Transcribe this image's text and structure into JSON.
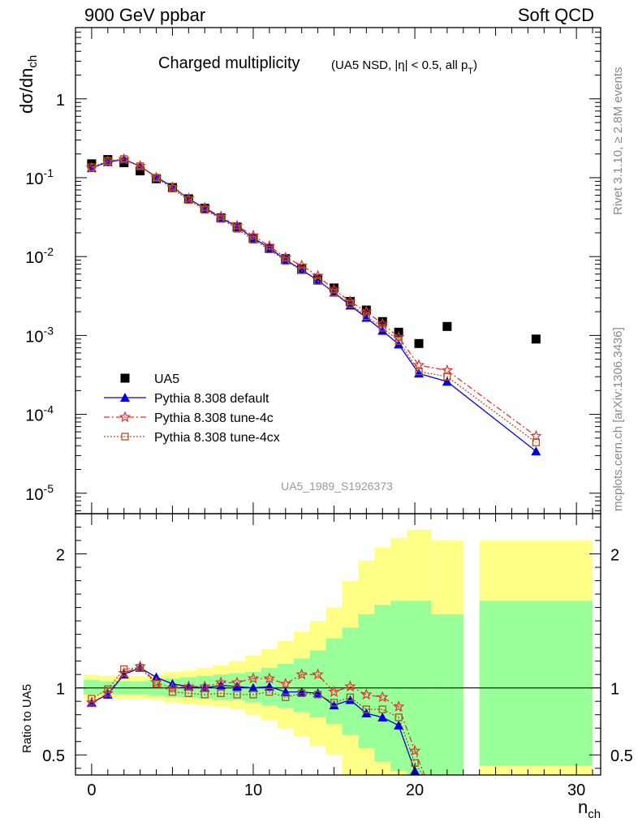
{
  "header": {
    "left": "900 GeV ppbar",
    "right": "Soft QCD"
  },
  "side": {
    "rivet": "Rivet 3.1.10, ≥ 2.8M events",
    "mcplots": "mcplots.cern.ch [arXiv:1306.3436]"
  },
  "chart_data": [
    {
      "type": "scatter",
      "title": "Charged multiplicity",
      "subtitle": "(UA5 NSD, |η| < 0.5, all p",
      "subtitle_sub": "T",
      "ylabel": "dσ/dn",
      "ylabel_sub": "ch",
      "yscale": "log",
      "xlim": [
        -1,
        31.5
      ],
      "ylim": [
        5.5e-06,
        8
      ],
      "y_tick_labels": [
        "1",
        "10",
        "10",
        "10",
        "10",
        "10"
      ],
      "y_tick_exponents": [
        "",
        "-1",
        "-2",
        "-3",
        "-4",
        "-5"
      ],
      "x_ticks": [
        0,
        10,
        20,
        30
      ],
      "watermark": "UA5_1989_S1926373",
      "legend_position": "bottom-left",
      "series": [
        {
          "name": "UA5",
          "color": "#000000",
          "marker": "square",
          "x": [
            0,
            1,
            2,
            3,
            4,
            5,
            6,
            7,
            8,
            9,
            10,
            11,
            12,
            13,
            14,
            15,
            16,
            17,
            18,
            19,
            20.25,
            22,
            27.5
          ],
          "y": [
            0.15,
            0.17,
            0.155,
            0.122,
            0.097,
            0.075,
            0.054,
            0.041,
            0.031,
            0.0237,
            0.0172,
            0.0127,
            0.0094,
            0.007,
            0.0052,
            0.004,
            0.0027,
            0.0021,
            0.0015,
            0.0011,
            0.00079,
            0.0013,
            0.0009
          ]
        },
        {
          "name": "Pythia 8.308 default",
          "color": "#0000dd",
          "marker": "triangle",
          "x": [
            0,
            1,
            2,
            3,
            4,
            5,
            6,
            7,
            8,
            9,
            10,
            11,
            12,
            13,
            14,
            15,
            16,
            17,
            18,
            19,
            20.25,
            22,
            27.5
          ],
          "y": [
            0.133,
            0.158,
            0.17,
            0.14,
            0.102,
            0.077,
            0.054,
            0.041,
            0.031,
            0.0239,
            0.0172,
            0.0129,
            0.0091,
            0.0068,
            0.005,
            0.0035,
            0.0024,
            0.00168,
            0.00115,
            0.00077,
            0.00033,
            0.00026,
            3.4e-05
          ]
        },
        {
          "name": "Pythia 8.308 tune-4c",
          "color": "#dd3333",
          "marker": "star",
          "x": [
            0,
            1,
            2,
            3,
            4,
            5,
            6,
            7,
            8,
            9,
            10,
            11,
            12,
            13,
            14,
            15,
            16,
            17,
            18,
            19,
            20.25,
            22,
            27.5
          ],
          "y": [
            0.133,
            0.16,
            0.172,
            0.141,
            0.1,
            0.075,
            0.0545,
            0.0415,
            0.0322,
            0.0246,
            0.0184,
            0.0136,
            0.0097,
            0.0077,
            0.0057,
            0.0038,
            0.0027,
            0.002,
            0.0014,
            0.00095,
            0.00042,
            0.00036,
            5.3e-05
          ]
        },
        {
          "name": "Pythia 8.308 tune-4cx",
          "color": "#aa5522",
          "marker": "open-square",
          "x": [
            0,
            1,
            2,
            3,
            4,
            5,
            6,
            7,
            8,
            9,
            10,
            11,
            12,
            13,
            14,
            15,
            16,
            17,
            18,
            19,
            20.25,
            22,
            27.5
          ],
          "y": [
            0.136,
            0.163,
            0.173,
            0.14,
            0.1,
            0.073,
            0.052,
            0.039,
            0.03,
            0.0225,
            0.0163,
            0.0123,
            0.0088,
            0.0067,
            0.0049,
            0.0035,
            0.0025,
            0.00175,
            0.00125,
            0.00085,
            0.00035,
            0.0003,
            4.4e-05
          ]
        }
      ]
    },
    {
      "type": "line",
      "ylabel": "Ratio to UA5",
      "ylim": [
        0.35,
        2.3
      ],
      "xlim": [
        -1,
        31.5
      ],
      "xlabel": "n",
      "xlabel_sub": "ch",
      "y_ticks": [
        0.5,
        1,
        2
      ],
      "y_tick_labels": [
        "0.5",
        "1",
        "2"
      ],
      "x_ticks": [
        0,
        10,
        20,
        30
      ],
      "x_tick_labels": [
        "0",
        "10",
        "20",
        "30"
      ],
      "reference": 1,
      "bands": {
        "x_edges": [
          -0.5,
          0.5,
          1.5,
          2.5,
          3.5,
          4.5,
          5.5,
          6.5,
          7.5,
          8.5,
          9.5,
          10.5,
          11.5,
          12.5,
          13.5,
          14.5,
          15.5,
          16.5,
          17.5,
          18.5,
          19.5,
          21,
          23,
          24,
          31
        ],
        "outer_color": "#ffff88",
        "inner_color": "#99ff99",
        "outer_lo": [
          0.92,
          0.93,
          0.92,
          0.92,
          0.91,
          0.89,
          0.88,
          0.87,
          0.86,
          0.84,
          0.8,
          0.76,
          0.7,
          0.64,
          0.57,
          0.5,
          0.33,
          0.33,
          0.33,
          0.33,
          0.33,
          0.33,
          null,
          0.33
        ],
        "outer_hi": [
          1.1,
          1.09,
          1.09,
          1.09,
          1.1,
          1.12,
          1.13,
          1.15,
          1.17,
          1.2,
          1.24,
          1.29,
          1.35,
          1.42,
          1.5,
          1.6,
          1.8,
          1.95,
          2.05,
          2.12,
          2.18,
          2.1,
          null,
          2.1
        ],
        "inner_lo": [
          0.95,
          0.95,
          0.95,
          0.95,
          0.94,
          0.93,
          0.93,
          0.92,
          0.91,
          0.91,
          0.89,
          0.87,
          0.85,
          0.82,
          0.78,
          0.73,
          0.65,
          0.55,
          0.45,
          0.38,
          0.33,
          0.33,
          null,
          0.42
        ],
        "inner_hi": [
          1.06,
          1.05,
          1.05,
          1.05,
          1.06,
          1.07,
          1.08,
          1.09,
          1.1,
          1.11,
          1.12,
          1.15,
          1.18,
          1.22,
          1.28,
          1.37,
          1.45,
          1.55,
          1.62,
          1.65,
          1.65,
          1.55,
          null,
          1.65
        ]
      },
      "series": [
        {
          "name": "Pythia 8.308 default",
          "color": "#0000dd",
          "x": [
            0,
            1,
            2,
            3,
            4,
            5,
            6,
            7,
            8,
            9,
            10,
            11,
            12,
            13,
            14,
            15,
            16,
            17,
            18,
            19,
            20
          ],
          "y": [
            0.89,
            0.95,
            1.1,
            1.15,
            1.08,
            1.03,
            1.01,
            1.0,
            1.02,
            1.01,
            1.0,
            1.01,
            0.97,
            0.97,
            0.96,
            0.87,
            0.91,
            0.81,
            0.78,
            0.72,
            0.38
          ]
        },
        {
          "name": "Pythia 8.308 tune-4c",
          "color": "#dd3333",
          "x": [
            0,
            1,
            2,
            3,
            4,
            5,
            6,
            7,
            8,
            9,
            10,
            11,
            12,
            13,
            14,
            15,
            16,
            17,
            18,
            19,
            20
          ],
          "y": [
            0.89,
            0.96,
            1.11,
            1.16,
            1.04,
            1.0,
            1.01,
            1.01,
            1.04,
            1.04,
            1.07,
            1.07,
            1.03,
            1.1,
            1.1,
            0.97,
            1.01,
            0.95,
            0.93,
            0.86,
            0.53
          ]
        },
        {
          "name": "Pythia 8.308 tune-4cx",
          "color": "#aa5522",
          "x": [
            0,
            1,
            2,
            3,
            4,
            5,
            6,
            7,
            8,
            9,
            10,
            11,
            12,
            13,
            14,
            15,
            16,
            17,
            18,
            19,
            20
          ],
          "y": [
            0.92,
            0.99,
            1.14,
            1.15,
            1.03,
            0.97,
            0.96,
            0.95,
            0.96,
            0.95,
            0.95,
            0.97,
            0.93,
            0.96,
            0.95,
            0.89,
            0.93,
            0.84,
            0.84,
            0.78,
            0.44
          ]
        }
      ]
    }
  ]
}
